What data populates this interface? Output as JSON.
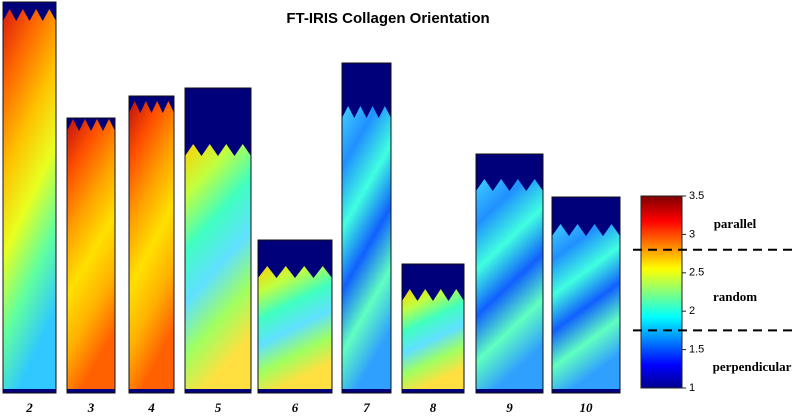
{
  "title": "FT-IRIS Collagen Orientation",
  "samples": [
    "2",
    "3",
    "4",
    "5",
    "6",
    "7",
    "8",
    "9",
    "10"
  ],
  "colorbar": {
    "lim": [
      1,
      3.5
    ],
    "ticks": [
      1,
      1.5,
      2,
      2.5,
      3,
      3.5
    ],
    "dividers": [
      1.75,
      2.8
    ],
    "labels": [
      "parallel",
      "random",
      "perpendicular"
    ]
  }
}
